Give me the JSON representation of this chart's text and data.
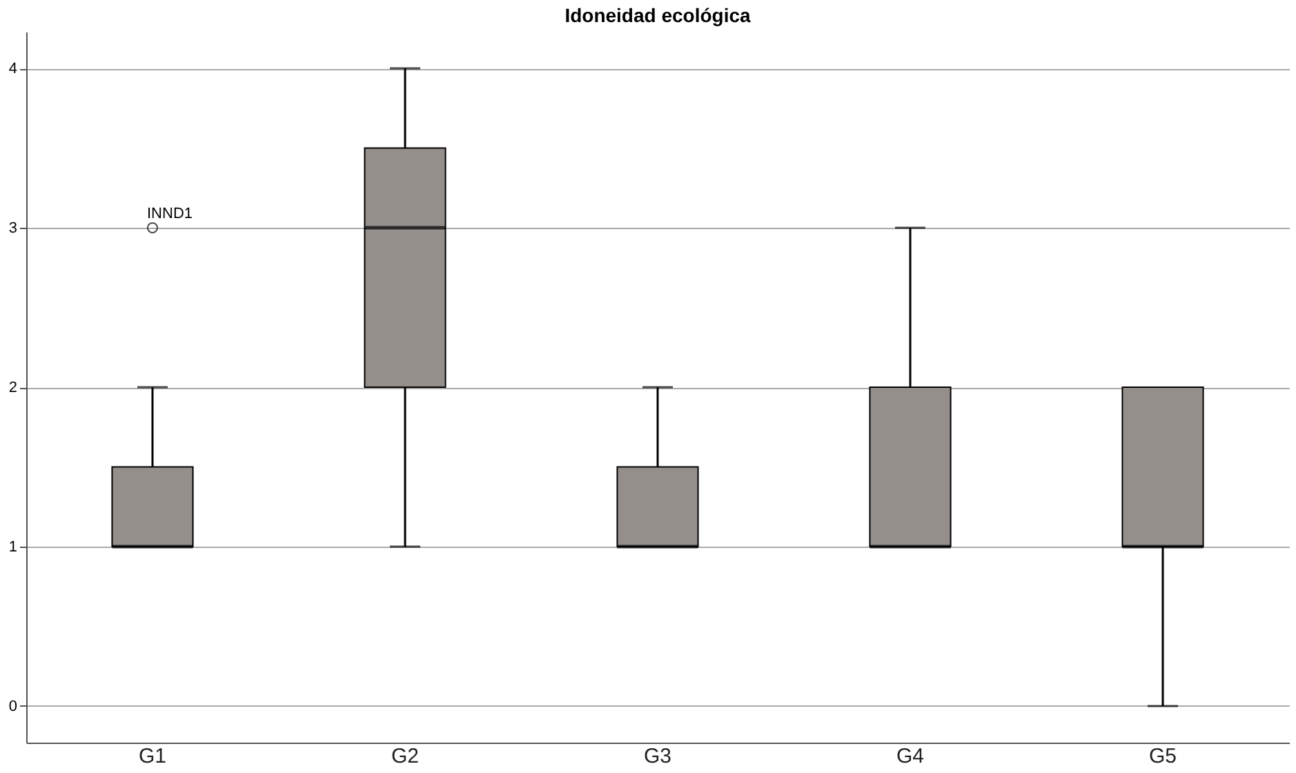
{
  "chart_data": {
    "type": "box",
    "title": "Idoneidad ecológica",
    "categories": [
      "G1",
      "G2",
      "G3",
      "G4",
      "G5"
    ],
    "color": "#958f8c",
    "boxes": [
      {
        "low": 1,
        "q1": 1,
        "median": 1,
        "q3": 1.5,
        "high": 2,
        "outliers": [
          3
        ]
      },
      {
        "low": 1,
        "q1": 2,
        "median": 3,
        "q3": 3.5,
        "high": 4
      },
      {
        "low": 1,
        "q1": 1,
        "median": 1,
        "q3": 1.5,
        "high": 2
      },
      {
        "low": 1,
        "q1": 1,
        "median": 1,
        "q3": 2,
        "high": 3
      },
      {
        "low": 0,
        "q1": 1,
        "median": 1,
        "q3": 2,
        "high": 2
      }
    ],
    "annotations": [
      "INND1"
    ],
    "ylim": [
      -0.23,
      4.23
    ],
    "yticks": [
      0,
      1,
      2,
      3,
      4
    ],
    "grid": "y"
  }
}
